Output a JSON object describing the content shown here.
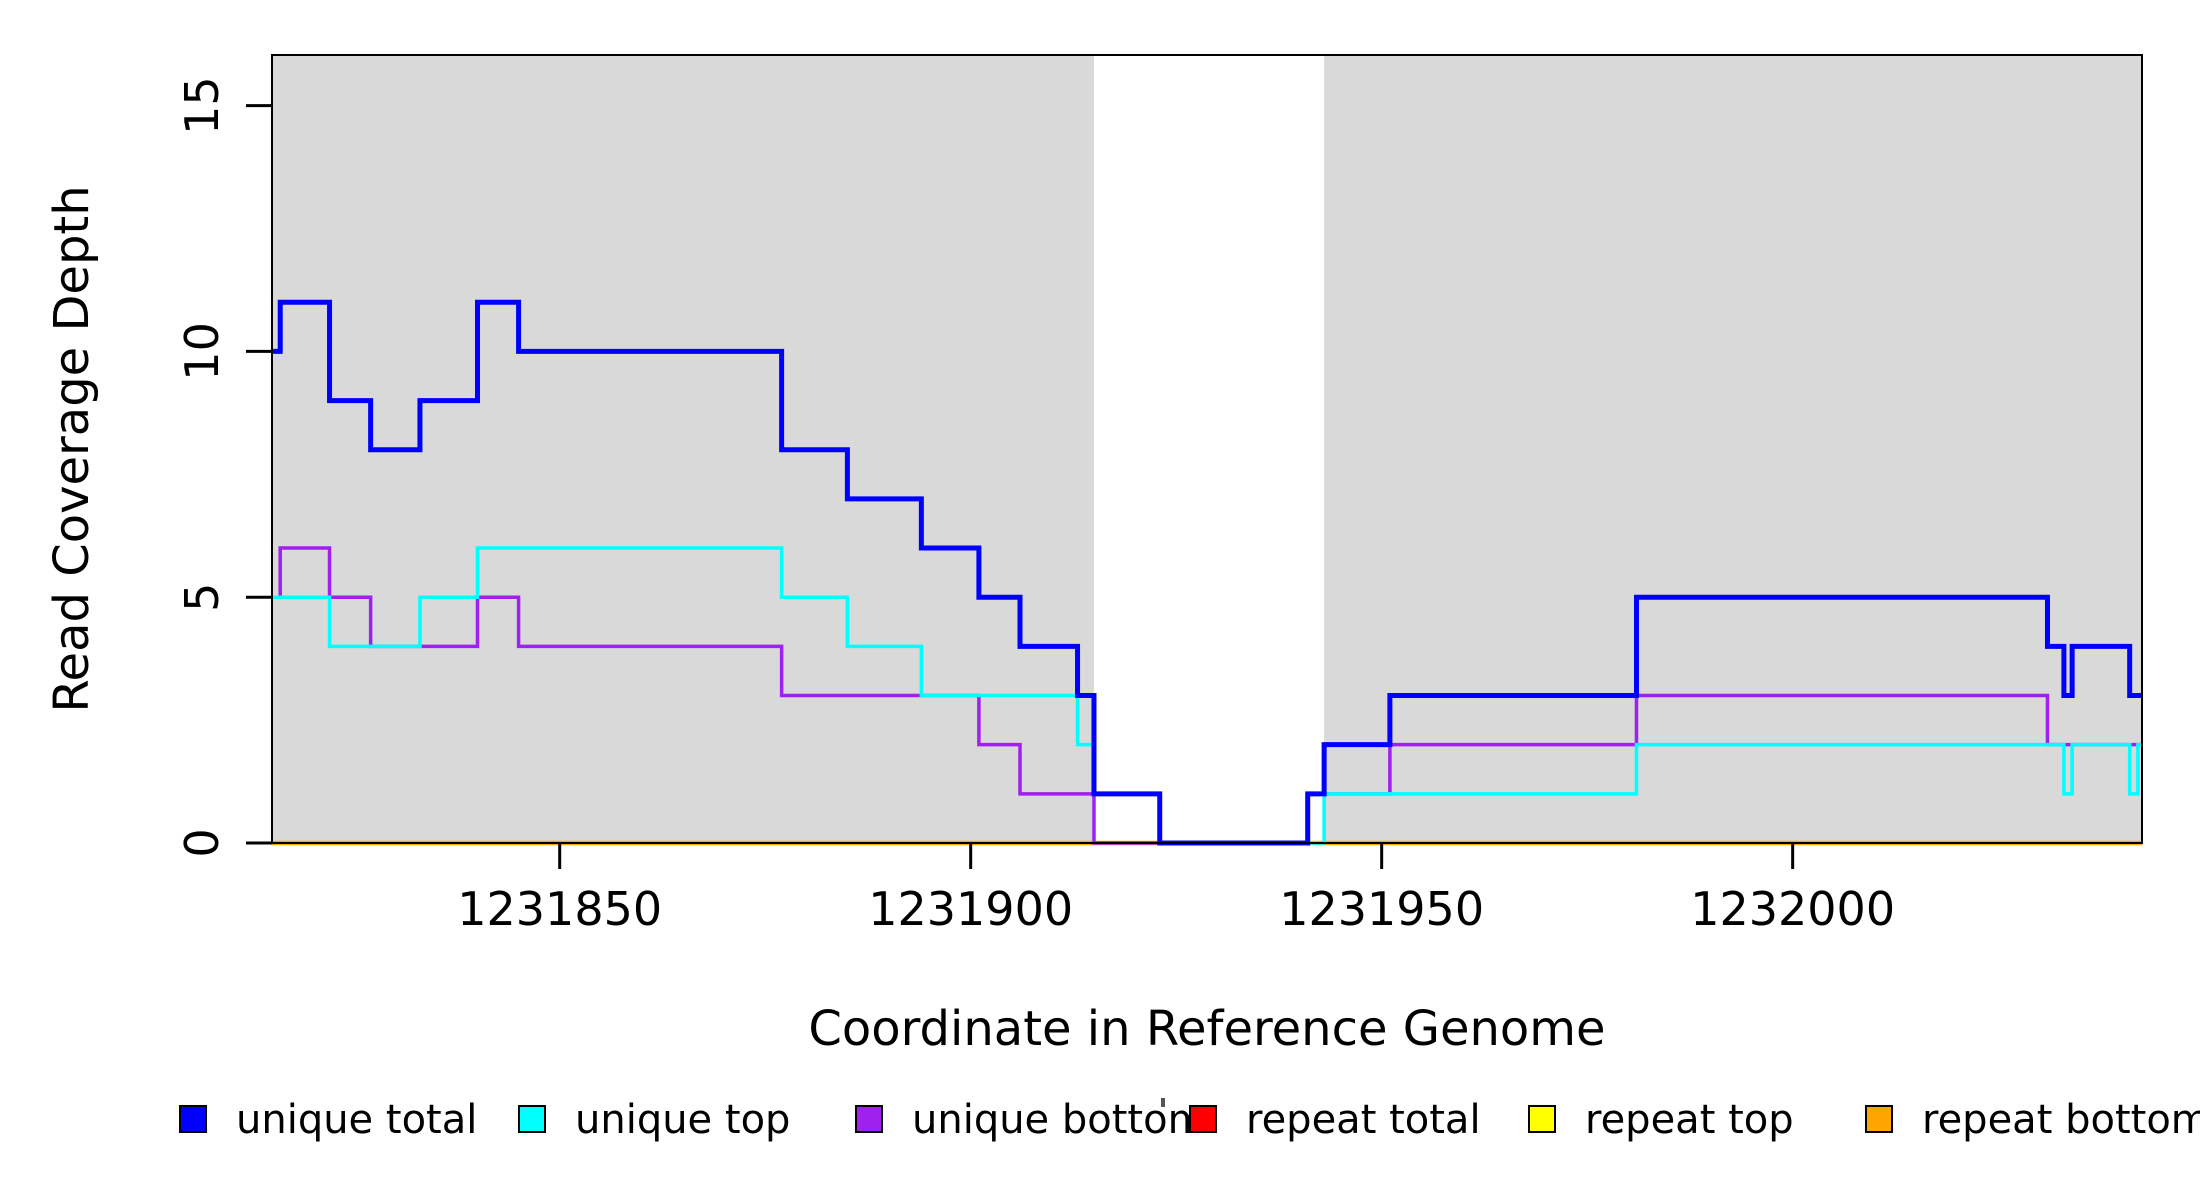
{
  "chart_data": {
    "type": "line",
    "subtype": "step",
    "title": "",
    "xlabel": "Coordinate in Reference Genome",
    "ylabel": "Read Coverage Depth",
    "xlim": [
      1231815,
      1232042.5
    ],
    "ylim": [
      0,
      16.03
    ],
    "xticks": [
      1231850,
      1231900,
      1231950,
      1232000
    ],
    "yticks": [
      0,
      5,
      10,
      15
    ],
    "grid": false,
    "legend_position": "bottom",
    "plot_background": "#ffffff",
    "shaded_region_color": "#d9d9d9",
    "background_regions": [
      {
        "x0": 1231815,
        "x1": 1231915
      },
      {
        "x0": 1231943,
        "x1": 1232042.5
      }
    ],
    "series": [
      {
        "name": "repeat total",
        "color": "#ff0000",
        "line_width": 3,
        "steps": [
          [
            1231815,
            0
          ]
        ]
      },
      {
        "name": "repeat top",
        "color": "#ffff00",
        "line_width": 3,
        "steps": [
          [
            1231815,
            0
          ]
        ]
      },
      {
        "name": "repeat bottom",
        "color": "#ffa500",
        "line_width": 4.5,
        "steps": [
          [
            1231815,
            0
          ]
        ]
      },
      {
        "name": "unique bottom",
        "color": "#a020f0",
        "line_width": 3.5,
        "steps": [
          [
            1231815,
            5
          ],
          [
            1231816,
            6
          ],
          [
            1231822,
            5
          ],
          [
            1231827,
            4
          ],
          [
            1231840,
            5
          ],
          [
            1231845,
            4
          ],
          [
            1231877,
            3
          ],
          [
            1231901,
            2
          ],
          [
            1231906,
            1
          ],
          [
            1231915,
            0
          ],
          [
            1231941,
            1
          ],
          [
            1231951,
            2
          ],
          [
            1231981,
            3
          ],
          [
            1232031,
            2
          ]
        ]
      },
      {
        "name": "unique top",
        "color": "#00ffff",
        "line_width": 3.5,
        "steps": [
          [
            1231815,
            5
          ],
          [
            1231822,
            4
          ],
          [
            1231833,
            5
          ],
          [
            1231840,
            6
          ],
          [
            1231877,
            5
          ],
          [
            1231885,
            4
          ],
          [
            1231894,
            3
          ],
          [
            1231913,
            2
          ],
          [
            1231915,
            1
          ],
          [
            1231923,
            0
          ],
          [
            1231943,
            1
          ],
          [
            1231981,
            2
          ],
          [
            1232033,
            1
          ],
          [
            1232034,
            2
          ],
          [
            1232041,
            1
          ],
          [
            1232042,
            2
          ]
        ]
      },
      {
        "name": "unique total",
        "color": "#0000ff",
        "line_width": 5,
        "steps": [
          [
            1231815,
            10
          ],
          [
            1231816,
            11
          ],
          [
            1231822,
            9
          ],
          [
            1231827,
            8
          ],
          [
            1231833,
            9
          ],
          [
            1231840,
            11
          ],
          [
            1231845,
            10
          ],
          [
            1231877,
            8
          ],
          [
            1231885,
            7
          ],
          [
            1231894,
            6
          ],
          [
            1231901,
            5
          ],
          [
            1231906,
            4
          ],
          [
            1231913,
            3
          ],
          [
            1231915,
            1
          ],
          [
            1231923,
            0
          ],
          [
            1231941,
            1
          ],
          [
            1231943,
            2
          ],
          [
            1231951,
            3
          ],
          [
            1231981,
            5
          ],
          [
            1232031,
            4
          ],
          [
            1232033,
            3
          ],
          [
            1232034,
            4
          ],
          [
            1232041,
            3
          ]
        ]
      }
    ],
    "legend": [
      {
        "label": "unique total",
        "color": "#0000ff"
      },
      {
        "label": "unique top",
        "color": "#00ffff"
      },
      {
        "label": "unique bottom",
        "color": "#a020f0"
      },
      {
        "label": "repeat total",
        "color": "#ff0000"
      },
      {
        "label": "repeat top",
        "color": "#ffff00"
      },
      {
        "label": "repeat bottom",
        "color": "#ffa500"
      }
    ]
  }
}
